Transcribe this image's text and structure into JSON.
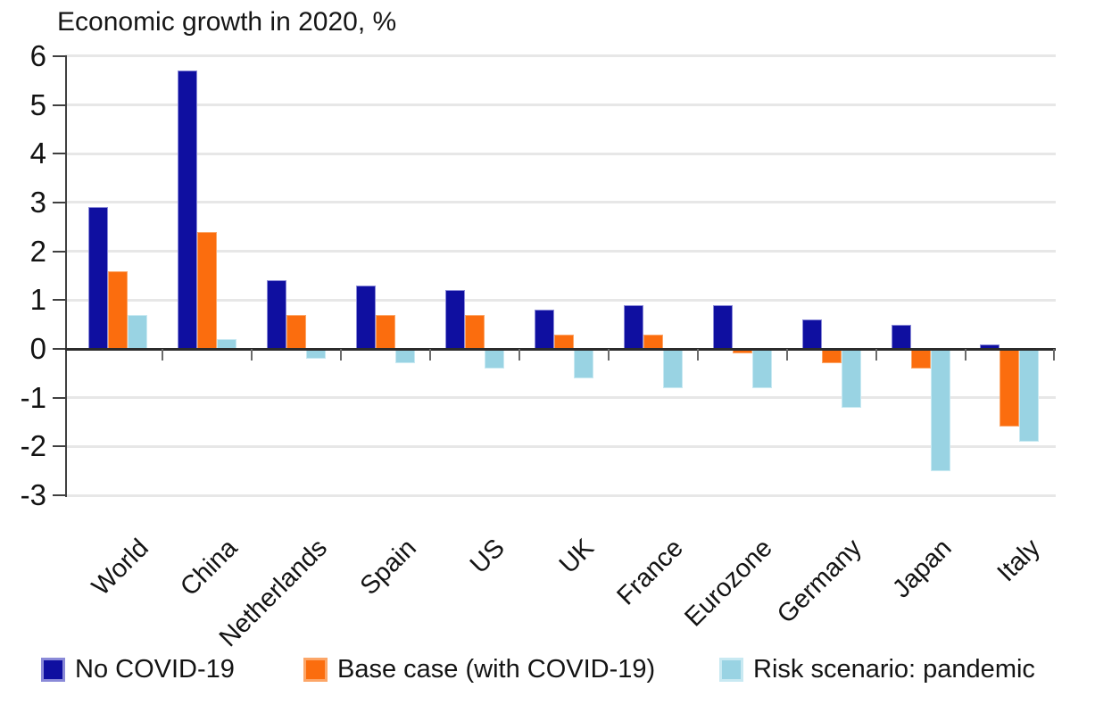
{
  "chart_data": {
    "type": "bar",
    "title": "Economic growth in 2020, %",
    "categories": [
      "World",
      "China",
      "Netherlands",
      "Spain",
      "US",
      "UK",
      "France",
      "Eurozone",
      "Germany",
      "Japan",
      "Italy"
    ],
    "series": [
      {
        "name": "No COVID-19",
        "color": "#0F0FA0",
        "border_color": "#8A8AD8",
        "values": [
          2.9,
          5.7,
          1.4,
          1.3,
          1.2,
          0.8,
          0.9,
          0.9,
          0.6,
          0.5,
          0.1
        ]
      },
      {
        "name": "Base case (with COVID-19)",
        "color": "#FB6D0E",
        "border_color": "#FCA668",
        "values": [
          1.6,
          2.4,
          0.7,
          0.7,
          0.7,
          0.3,
          0.3,
          -0.1,
          -0.3,
          -0.4,
          -1.6
        ]
      },
      {
        "name": "Risk scenario: pandemic",
        "color": "#99D3E3",
        "border_color": "#C8E9F2",
        "values": [
          0.7,
          0.2,
          -0.2,
          -0.3,
          -0.4,
          -0.6,
          -0.8,
          -0.8,
          -1.2,
          -2.5,
          -1.9
        ]
      }
    ],
    "xlabel": "",
    "ylabel": "",
    "ylim": [
      -3,
      6
    ],
    "ytick_interval": 1,
    "grid": true,
    "legend_position": "bottom",
    "colors": {
      "gridline": "#E7E7E7",
      "axis": "#3C3C3C",
      "text": "#141414",
      "background": "#FFFFFF"
    }
  }
}
